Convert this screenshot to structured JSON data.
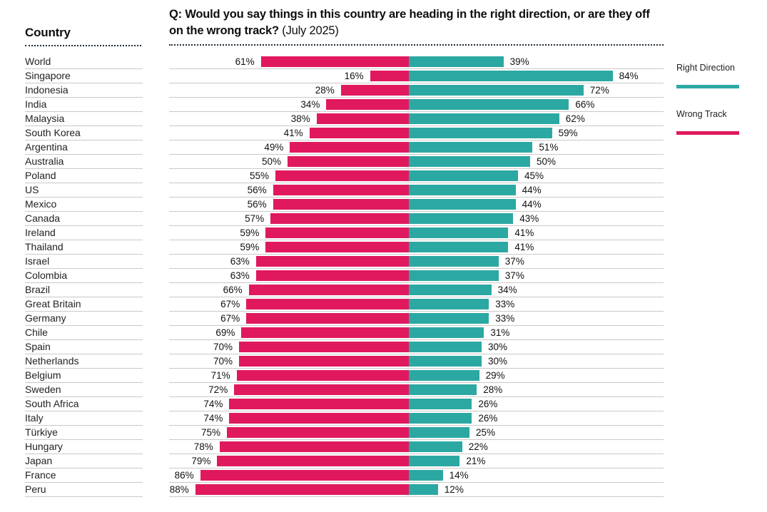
{
  "header": {
    "country_column_label": "Country",
    "question_bold": "Q: Would you say things in this country are heading in the right direction, or are they off on the wrong track?",
    "question_suffix": " (July 2025)"
  },
  "legend": {
    "right_direction_label": "Right Direction",
    "wrong_track_label": "Wrong Track"
  },
  "colors": {
    "right_direction": "#2CA8A3",
    "wrong_track": "#E0195E",
    "row_line": "#C9C9C9",
    "dotted_line": "#1D2A35"
  },
  "chart_data": {
    "type": "bar",
    "subtype": "diverging-horizontal",
    "title": "Q: Would you say things in this country are heading in the right direction, or are they off on the wrong track? (July 2025)",
    "value_suffix": "%",
    "axis": {
      "center_pivot": true,
      "max_per_side": 100,
      "grid": false
    },
    "legend_position": "right",
    "categories": [
      "World",
      "Singapore",
      "Indonesia",
      "India",
      "Malaysia",
      "South Korea",
      "Argentina",
      "Australia",
      "Poland",
      "US",
      "Mexico",
      "Canada",
      "Ireland",
      "Thailand",
      "Israel",
      "Colombia",
      "Brazil",
      "Great Britain",
      "Germany",
      "Chile",
      "Spain",
      "Netherlands",
      "Belgium",
      "Sweden",
      "South Africa",
      "Italy",
      "Türkiye",
      "Hungary",
      "Japan",
      "France",
      "Peru"
    ],
    "series": [
      {
        "name": "Wrong Track",
        "color": "#E0195E",
        "direction": "left",
        "values": [
          61,
          16,
          28,
          34,
          38,
          41,
          49,
          50,
          55,
          56,
          56,
          57,
          59,
          59,
          63,
          63,
          66,
          67,
          67,
          69,
          70,
          70,
          71,
          72,
          74,
          74,
          75,
          78,
          79,
          86,
          88
        ]
      },
      {
        "name": "Right Direction",
        "color": "#2CA8A3",
        "direction": "right",
        "values": [
          39,
          84,
          72,
          66,
          62,
          59,
          51,
          50,
          45,
          44,
          44,
          43,
          41,
          41,
          37,
          37,
          34,
          33,
          33,
          31,
          30,
          30,
          29,
          28,
          26,
          26,
          25,
          22,
          21,
          14,
          12
        ]
      }
    ]
  }
}
